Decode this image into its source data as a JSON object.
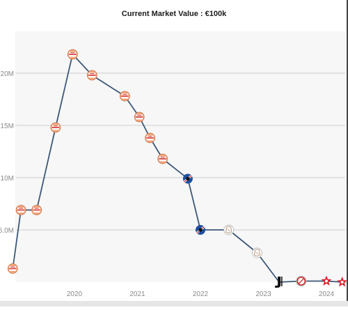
{
  "chart_data": {
    "type": "line",
    "title": "Current Market Value : €100k",
    "xlabel": "",
    "ylabel": "",
    "y_tick_labels": [
      "5.0M",
      "10M",
      "15M",
      "20M"
    ],
    "y_ticks": [
      5,
      10,
      15,
      20
    ],
    "x_tick_labels": [
      "2020",
      "2021",
      "2022",
      "2023",
      "2024"
    ],
    "x_ticks": [
      2020,
      2021,
      2022,
      2023,
      2024
    ],
    "ylim": [
      0,
      24
    ],
    "xlim": [
      2019.0,
      2024.5
    ],
    "grid": "horizontal",
    "line_color": "#3e5879",
    "plot_background": "#f7f7f7",
    "grid_color": "#dcdcdc",
    "series": [
      {
        "x": [
          2019.02,
          2019.15,
          2019.4,
          2019.7,
          2019.97,
          2020.28,
          2020.8,
          2021.03,
          2021.2,
          2021.4,
          2021.8,
          2022.0,
          2022.45,
          2022.9,
          2023.25,
          2023.6,
          2024.0,
          2024.25
        ],
        "y": [
          1.3,
          6.9,
          6.9,
          14.8,
          21.8,
          19.8,
          17.8,
          15.8,
          13.8,
          11.8,
          9.9,
          5.0,
          5.0,
          2.8,
          0.0,
          0.1,
          0.1,
          0.0
        ],
        "clubs": [
          "psv",
          "psv",
          "psv",
          "psv",
          "psv",
          "psv",
          "psv",
          "psv",
          "psv",
          "psv",
          "sampdoria",
          "sampdoria",
          "ajax",
          "ajax",
          "juventus",
          "monaco",
          "redstar",
          "redstar"
        ]
      }
    ]
  }
}
